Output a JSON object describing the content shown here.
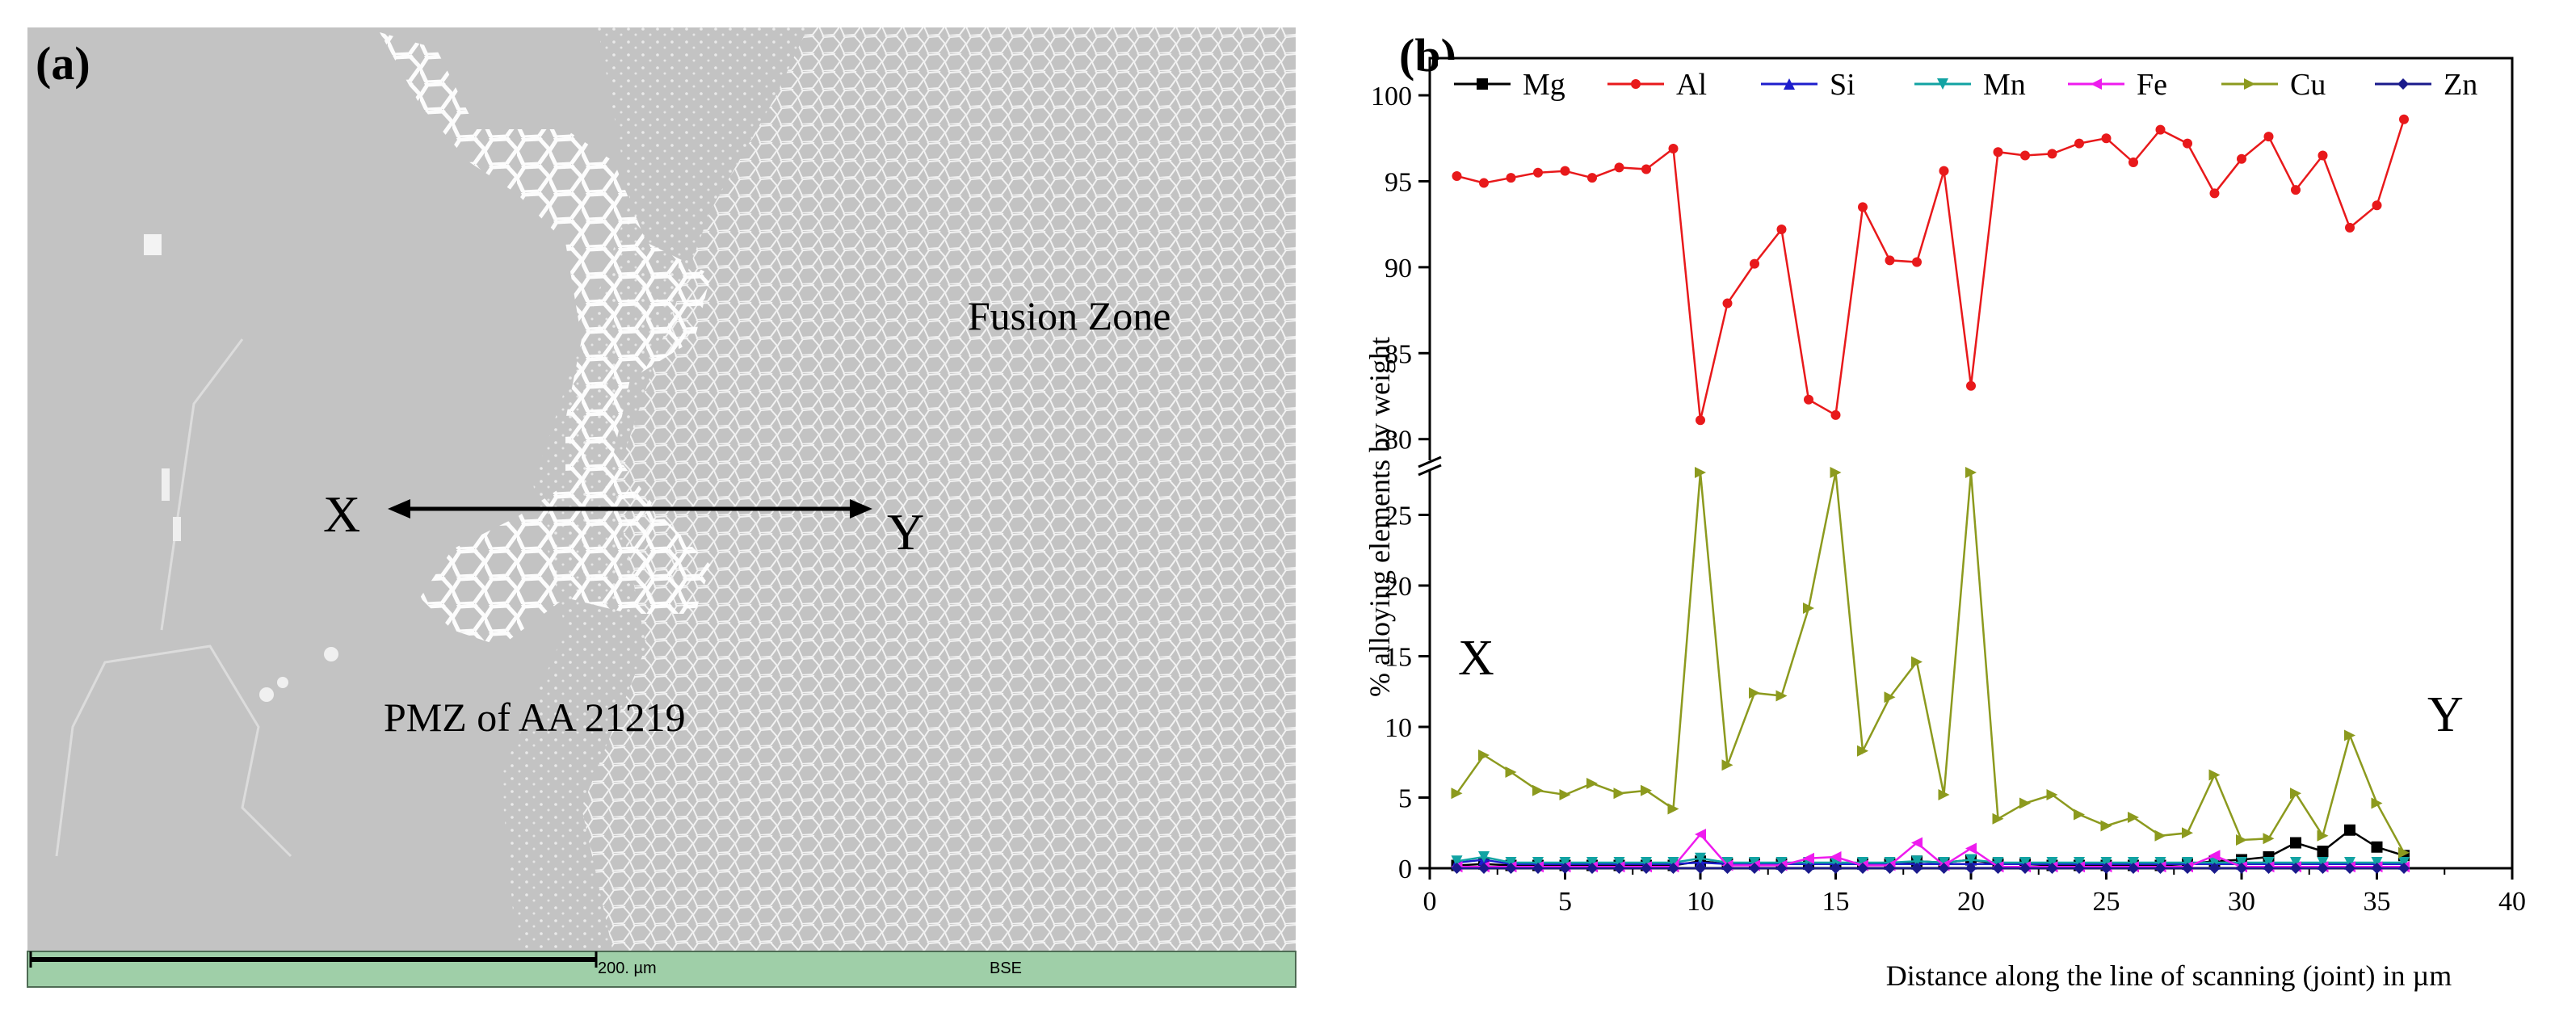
{
  "panel_a": {
    "label": "(a)",
    "fusion_zone_label": "Fusion Zone",
    "pmz_label": "PMZ of AA 21219",
    "marker_x": "X",
    "marker_y": "Y",
    "scale_bar_label": "200. µm",
    "detector_label": "BSE",
    "colors": {
      "background": "#c2c2c2",
      "scalebar_strip": "#9fcfa8"
    }
  },
  "panel_b": {
    "label": "(b)",
    "marker_x": "X",
    "marker_y": "Y"
  },
  "chart_data": {
    "type": "line",
    "title": "",
    "xlabel": "Distance along the line of scanning (joint) in µm",
    "ylabel": "% alloying elements by weight",
    "xlim": [
      0,
      40
    ],
    "x_ticks": [
      0,
      5,
      10,
      15,
      20,
      25,
      30,
      35,
      40
    ],
    "y_axis_break": {
      "lower_range": [
        0,
        28
      ],
      "upper_range": [
        79,
        100
      ]
    },
    "y_ticks_lower": [
      0,
      5,
      10,
      15,
      20,
      25
    ],
    "y_ticks_upper": [
      80,
      85,
      90,
      95,
      100
    ],
    "legend_position": "top",
    "x": [
      1,
      2,
      3,
      4,
      5,
      6,
      7,
      8,
      9,
      10,
      11,
      12,
      13,
      14,
      15,
      16,
      17,
      18,
      19,
      20,
      21,
      22,
      23,
      24,
      25,
      26,
      27,
      28,
      29,
      30,
      31,
      32,
      33,
      34,
      35,
      36
    ],
    "series": [
      {
        "name": "Mg",
        "color": "#000000",
        "marker": "square",
        "values": [
          0.2,
          0.3,
          0.2,
          0.2,
          0.2,
          0.2,
          0.2,
          0.2,
          0.2,
          0.5,
          0.3,
          0.3,
          0.3,
          0.3,
          0.3,
          0.3,
          0.3,
          0.5,
          0.4,
          0.6,
          0.3,
          0.3,
          0.2,
          0.2,
          0.2,
          0.2,
          0.2,
          0.3,
          0.5,
          0.6,
          0.8,
          1.8,
          1.2,
          2.7,
          1.5,
          0.9
        ]
      },
      {
        "name": "Al",
        "color": "#e8191b",
        "marker": "circle",
        "values": [
          95.3,
          94.9,
          95.2,
          95.5,
          95.6,
          95.2,
          95.8,
          95.7,
          96.9,
          81.1,
          87.9,
          90.2,
          92.2,
          82.3,
          81.4,
          93.5,
          90.4,
          90.3,
          95.6,
          83.1,
          96.7,
          96.5,
          96.6,
          97.2,
          97.5,
          96.1,
          98.0,
          97.2,
          94.3,
          96.3,
          97.6,
          94.5,
          96.5,
          92.3,
          93.6,
          98.6
        ]
      },
      {
        "name": "Si",
        "color": "#1d1dcc",
        "marker": "triangle-up",
        "values": [
          0.4,
          0.6,
          0.3,
          0.3,
          0.3,
          0.3,
          0.3,
          0.3,
          0.3,
          0.4,
          0.3,
          0.3,
          0.3,
          0.3,
          0.3,
          0.3,
          0.3,
          0.3,
          0.3,
          0.3,
          0.3,
          0.3,
          0.3,
          0.3,
          0.3,
          0.3,
          0.3,
          0.3,
          0.3,
          0.3,
          0.3,
          0.3,
          0.3,
          0.3,
          0.3,
          0.3
        ]
      },
      {
        "name": "Mn",
        "color": "#12a3a3",
        "marker": "triangle-down",
        "values": [
          0.5,
          0.8,
          0.4,
          0.4,
          0.4,
          0.4,
          0.4,
          0.4,
          0.4,
          0.7,
          0.4,
          0.4,
          0.4,
          0.4,
          0.4,
          0.4,
          0.4,
          0.5,
          0.4,
          0.6,
          0.4,
          0.4,
          0.4,
          0.4,
          0.4,
          0.4,
          0.4,
          0.4,
          0.4,
          0.4,
          0.4,
          0.4,
          0.4,
          0.4,
          0.4,
          0.4
        ]
      },
      {
        "name": "Fe",
        "color": "#ee1bee",
        "marker": "triangle-left",
        "values": [
          0.1,
          0.1,
          0.1,
          0.1,
          0.1,
          0.1,
          0.1,
          0.1,
          0.1,
          2.4,
          0.2,
          0.2,
          0.2,
          0.7,
          0.8,
          0.2,
          0.2,
          1.8,
          0.2,
          1.4,
          0.1,
          0.1,
          0.1,
          0.1,
          0.1,
          0.1,
          0.1,
          0.1,
          0.9,
          0.1,
          0.1,
          0.1,
          0.1,
          0.1,
          0.1,
          0.1
        ]
      },
      {
        "name": "Cu",
        "color": "#8c9a1e",
        "marker": "triangle-right",
        "values": [
          5.3,
          8.0,
          6.8,
          5.5,
          5.2,
          6.0,
          5.3,
          5.5,
          4.2,
          28.4,
          7.3,
          12.4,
          12.2,
          18.4,
          28.2,
          8.3,
          12.1,
          14.6,
          5.2,
          28.6,
          3.5,
          4.6,
          5.2,
          3.8,
          3.0,
          3.6,
          2.3,
          2.5,
          6.6,
          2.0,
          2.1,
          5.3,
          2.3,
          9.4,
          4.6,
          1.1
        ]
      },
      {
        "name": "Zn",
        "color": "#1a1a8c",
        "marker": "diamond",
        "values": [
          0.0,
          0.0,
          0.0,
          0.0,
          0.0,
          0.0,
          0.0,
          0.0,
          0.0,
          0.0,
          0.0,
          0.0,
          0.0,
          0.0,
          0.0,
          0.0,
          0.0,
          0.0,
          0.0,
          0.0,
          0.0,
          0.0,
          0.0,
          0.0,
          0.0,
          0.0,
          0.0,
          0.0,
          0.0,
          0.0,
          0.0,
          0.0,
          0.0,
          0.0,
          0.0,
          0.0
        ]
      }
    ]
  }
}
